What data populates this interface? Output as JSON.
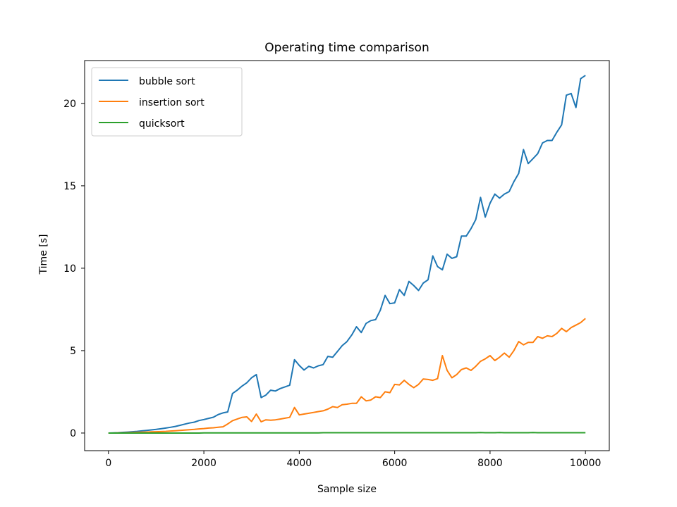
{
  "chart_data": {
    "type": "line",
    "title": "Operating time comparison",
    "xlabel": "Sample size",
    "ylabel": "Time [s]",
    "xlim": [
      -500,
      10500
    ],
    "ylim": [
      -1.07,
      22.6
    ],
    "xticks": [
      0,
      2000,
      4000,
      6000,
      8000,
      10000
    ],
    "yticks": [
      0,
      5,
      10,
      15,
      20
    ],
    "grid": false,
    "legend_position": "upper-left",
    "x": [
      0,
      100,
      200,
      300,
      400,
      500,
      600,
      700,
      800,
      900,
      1000,
      1100,
      1200,
      1300,
      1400,
      1500,
      1600,
      1700,
      1800,
      1900,
      2000,
      2100,
      2200,
      2300,
      2400,
      2500,
      2600,
      2700,
      2800,
      2900,
      3000,
      3100,
      3200,
      3300,
      3400,
      3500,
      3600,
      3700,
      3800,
      3900,
      4000,
      4100,
      4200,
      4300,
      4400,
      4500,
      4600,
      4700,
      4800,
      4900,
      5000,
      5100,
      5200,
      5300,
      5400,
      5500,
      5600,
      5700,
      5800,
      5900,
      6000,
      6100,
      6200,
      6300,
      6400,
      6500,
      6600,
      6700,
      6800,
      6900,
      7000,
      7100,
      7200,
      7300,
      7400,
      7500,
      7600,
      7700,
      7800,
      7900,
      8000,
      8100,
      8200,
      8300,
      8400,
      8500,
      8600,
      8700,
      8800,
      8900,
      9000,
      9100,
      9200,
      9300,
      9400,
      9500,
      9600,
      9700,
      9800,
      9900,
      10000
    ],
    "series": [
      {
        "name": "bubble sort",
        "color": "#1f77b4",
        "values": [
          0.0,
          0.01,
          0.02,
          0.04,
          0.06,
          0.08,
          0.1,
          0.13,
          0.16,
          0.19,
          0.22,
          0.26,
          0.3,
          0.35,
          0.4,
          0.47,
          0.54,
          0.61,
          0.66,
          0.76,
          0.82,
          0.89,
          0.96,
          1.12,
          1.22,
          1.28,
          2.4,
          2.6,
          2.85,
          3.05,
          3.35,
          3.55,
          2.15,
          2.3,
          2.6,
          2.55,
          2.7,
          2.8,
          2.9,
          4.45,
          4.1,
          3.82,
          4.05,
          3.95,
          4.08,
          4.15,
          4.65,
          4.6,
          4.95,
          5.3,
          5.55,
          5.95,
          6.45,
          6.1,
          6.65,
          6.82,
          6.88,
          7.45,
          8.35,
          7.85,
          7.9,
          8.7,
          8.35,
          9.2,
          8.95,
          8.65,
          9.1,
          9.3,
          10.75,
          10.1,
          9.9,
          10.85,
          10.6,
          10.7,
          11.95,
          11.95,
          12.4,
          12.95,
          14.3,
          13.1,
          13.95,
          14.5,
          14.25,
          14.5,
          14.65,
          15.25,
          15.75,
          17.2,
          16.35,
          16.65,
          16.95,
          17.6,
          17.75,
          17.75,
          18.25,
          18.7,
          20.5,
          20.6,
          19.75,
          21.5,
          21.7
        ]
      },
      {
        "name": "insertion sort",
        "color": "#ff7f0e",
        "values": [
          0.0,
          0.0,
          0.01,
          0.01,
          0.02,
          0.03,
          0.04,
          0.05,
          0.06,
          0.07,
          0.08,
          0.09,
          0.1,
          0.12,
          0.14,
          0.16,
          0.18,
          0.2,
          0.22,
          0.25,
          0.27,
          0.3,
          0.32,
          0.35,
          0.38,
          0.55,
          0.75,
          0.85,
          0.95,
          0.98,
          0.7,
          1.15,
          0.68,
          0.8,
          0.78,
          0.8,
          0.85,
          0.9,
          0.95,
          1.55,
          1.1,
          1.15,
          1.2,
          1.25,
          1.3,
          1.35,
          1.45,
          1.6,
          1.55,
          1.72,
          1.75,
          1.8,
          1.8,
          2.2,
          1.95,
          2.0,
          2.2,
          2.15,
          2.5,
          2.45,
          2.95,
          2.92,
          3.2,
          2.95,
          2.75,
          2.95,
          3.28,
          3.25,
          3.2,
          3.3,
          4.7,
          3.8,
          3.35,
          3.55,
          3.85,
          3.95,
          3.8,
          4.05,
          4.35,
          4.5,
          4.7,
          4.4,
          4.6,
          4.85,
          4.6,
          5.0,
          5.55,
          5.35,
          5.5,
          5.5,
          5.85,
          5.75,
          5.9,
          5.85,
          6.05,
          6.35,
          6.15,
          6.4,
          6.55,
          6.7,
          6.95
        ]
      },
      {
        "name": "quicksort",
        "color": "#2ca02c",
        "values": [
          0.0,
          0.0,
          0.0,
          0.0,
          0.0,
          0.0,
          0.0,
          0.0,
          0.0,
          0.0,
          0.0,
          0.0,
          0.0,
          0.0,
          0.0,
          0.0,
          0.0,
          0.0,
          0.0,
          0.0,
          0.01,
          0.01,
          0.01,
          0.01,
          0.01,
          0.01,
          0.01,
          0.01,
          0.01,
          0.01,
          0.01,
          0.01,
          0.01,
          0.01,
          0.01,
          0.01,
          0.01,
          0.01,
          0.01,
          0.01,
          0.01,
          0.01,
          0.01,
          0.01,
          0.01,
          0.02,
          0.02,
          0.02,
          0.02,
          0.02,
          0.02,
          0.02,
          0.02,
          0.02,
          0.02,
          0.02,
          0.02,
          0.02,
          0.02,
          0.02,
          0.02,
          0.02,
          0.02,
          0.02,
          0.02,
          0.02,
          0.02,
          0.02,
          0.02,
          0.02,
          0.02,
          0.02,
          0.02,
          0.02,
          0.02,
          0.02,
          0.02,
          0.02,
          0.03,
          0.02,
          0.02,
          0.02,
          0.03,
          0.02,
          0.02,
          0.02,
          0.02,
          0.02,
          0.02,
          0.03,
          0.02,
          0.02,
          0.02,
          0.02,
          0.02,
          0.02,
          0.02,
          0.02,
          0.02,
          0.02,
          0.02
        ]
      }
    ]
  }
}
